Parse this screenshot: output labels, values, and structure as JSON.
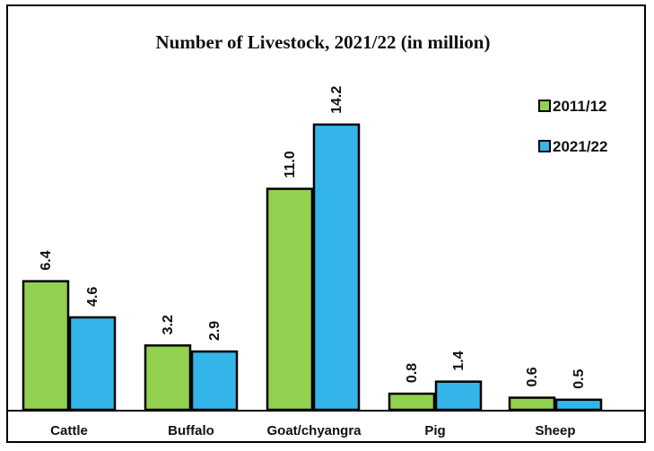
{
  "chart_data": {
    "type": "bar",
    "title": "Number of Livestock, 2021/22 (in million)",
    "categories": [
      "Cattle",
      "Buffalo",
      "Goat/chyangra",
      "Pig",
      "Sheep"
    ],
    "series": [
      {
        "name": "2011/12",
        "values": [
          6.4,
          3.2,
          11.0,
          0.8,
          0.6
        ],
        "labels": [
          "6.4",
          "3.2",
          "11.0",
          "0.8",
          "0.6"
        ],
        "color": "#92d050"
      },
      {
        "name": "2021/22",
        "values": [
          4.6,
          2.9,
          14.2,
          1.4,
          0.5
        ],
        "labels": [
          "4.6",
          "2.9",
          "14.2",
          "1.4",
          "0.5"
        ],
        "color": "#33b5ea"
      }
    ],
    "ylim": [
      0,
      16
    ],
    "grid": false,
    "legend": "top-right"
  }
}
